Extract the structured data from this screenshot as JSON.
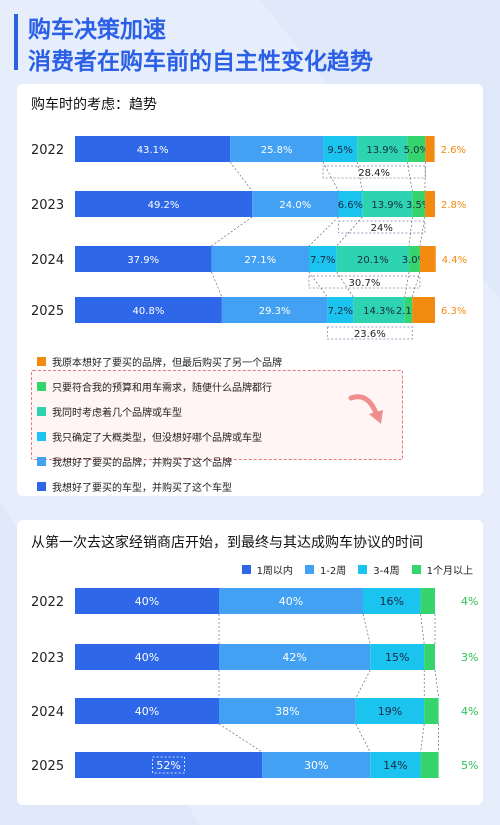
{
  "header": {
    "title_line1": "购车决策加速",
    "title_line2": "消费者在购车前的自主性变化趋势"
  },
  "colors": {
    "bg": "#e6eefb",
    "title": "#2a5fe6",
    "dark_blue": "#2e68e8",
    "mid_blue": "#42a1f2",
    "cyan": "#1bc3ef",
    "teal": "#2ed3b1",
    "green": "#35d46d",
    "orange": "#f28a10"
  },
  "chart_data": [
    {
      "type": "bar",
      "stacked": true,
      "orientation": "horizontal",
      "title": "购车时的考虑：趋势",
      "categories": [
        "2022",
        "2023",
        "2024",
        "2025"
      ],
      "series": [
        {
          "name": "我想好了要买的车型，并购买了这个车型",
          "color": "#2e68e8",
          "values": [
            43.1,
            49.2,
            37.9,
            40.8
          ],
          "labels": [
            "43.1%",
            "49.2%",
            "37.9%",
            "40.8%"
          ]
        },
        {
          "name": "我想好了要买的品牌，并购买了这个品牌",
          "color": "#42a1f2",
          "values": [
            25.8,
            24.0,
            27.1,
            29.3
          ],
          "labels": [
            "25.8%",
            "24.0%",
            "27.1%",
            "29.3%"
          ]
        },
        {
          "name": "我只确定了大概类型，但没想好哪个品牌或车型",
          "color": "#1bc3ef",
          "values": [
            9.5,
            6.6,
            7.7,
            7.2
          ],
          "labels": [
            "9.5%",
            "6.6%",
            "7.7%",
            "7.2%"
          ]
        },
        {
          "name": "我同时考虑着几个品牌或车型",
          "color": "#2ed3b1",
          "values": [
            13.9,
            13.9,
            20.1,
            14.3
          ],
          "labels": [
            "13.9%",
            "13.9%",
            "20.1%",
            "14.3%"
          ]
        },
        {
          "name": "只要符合我的预算和用车需求，随便什么品牌都行",
          "color": "#35d46d",
          "values": [
            5.0,
            3.5,
            3.0,
            2.1
          ],
          "labels": [
            "5.0%",
            "3.5%",
            "3.0%",
            "2.1%"
          ]
        },
        {
          "name": "我原本想好了要买的品牌，但最后购买了另一个品牌",
          "color": "#f28a10",
          "values": [
            2.6,
            2.8,
            4.4,
            6.3
          ],
          "labels": [
            "2.6%",
            "2.8%",
            "4.4%",
            "6.3%"
          ]
        }
      ],
      "group_totals": [
        "28.4%",
        "24%",
        "30.7%",
        "23.6%"
      ],
      "xlim": [
        0,
        100
      ],
      "legend_placement": "bottom"
    },
    {
      "type": "bar",
      "stacked": true,
      "orientation": "horizontal",
      "title": "从第一次去这家经销商店开始，到最终与其达成购车协议的时间",
      "categories": [
        "2022",
        "2023",
        "2024",
        "2025"
      ],
      "series": [
        {
          "name": "1周以内",
          "color": "#2e68e8",
          "values": [
            40,
            40,
            40,
            52
          ],
          "labels": [
            "40%",
            "40%",
            "40%",
            "52%"
          ]
        },
        {
          "name": "1-2周",
          "color": "#42a1f2",
          "values": [
            40,
            42,
            38,
            30
          ],
          "labels": [
            "40%",
            "42%",
            "38%",
            "30%"
          ]
        },
        {
          "name": "3-4周",
          "color": "#1bc3ef",
          "values": [
            16,
            15,
            19,
            14
          ],
          "labels": [
            "16%",
            "15%",
            "19%",
            "14%"
          ]
        },
        {
          "name": "1个月以上",
          "color": "#35d46d",
          "values": [
            4,
            3,
            4,
            5
          ],
          "labels": [
            "4%",
            "3%",
            "4%",
            "5%"
          ]
        }
      ],
      "xlim": [
        0,
        100
      ],
      "legend_placement": "top-right"
    }
  ]
}
